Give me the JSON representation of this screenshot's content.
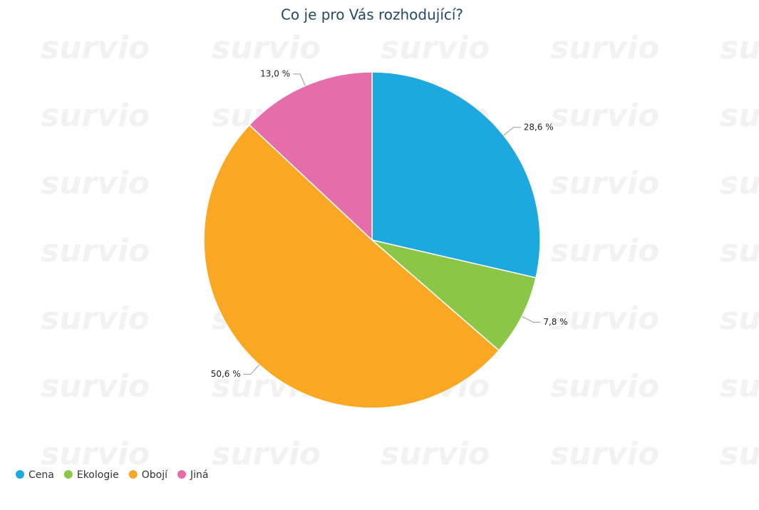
{
  "chart_data": {
    "type": "pie",
    "title": "Co je pro Vás rozhodující?",
    "categories": [
      "Cena",
      "Ekologie",
      "Obojí",
      "Jiná"
    ],
    "values": [
      28.6,
      7.8,
      50.6,
      13.0
    ],
    "value_labels": [
      "28,6 %",
      "7,8 %",
      "50,6 %",
      "13,0 %"
    ],
    "colors": [
      "#1ea8e0",
      "#8bc646",
      "#faa824",
      "#e46daa"
    ],
    "legend": "bottom-left"
  },
  "watermark": "survio"
}
